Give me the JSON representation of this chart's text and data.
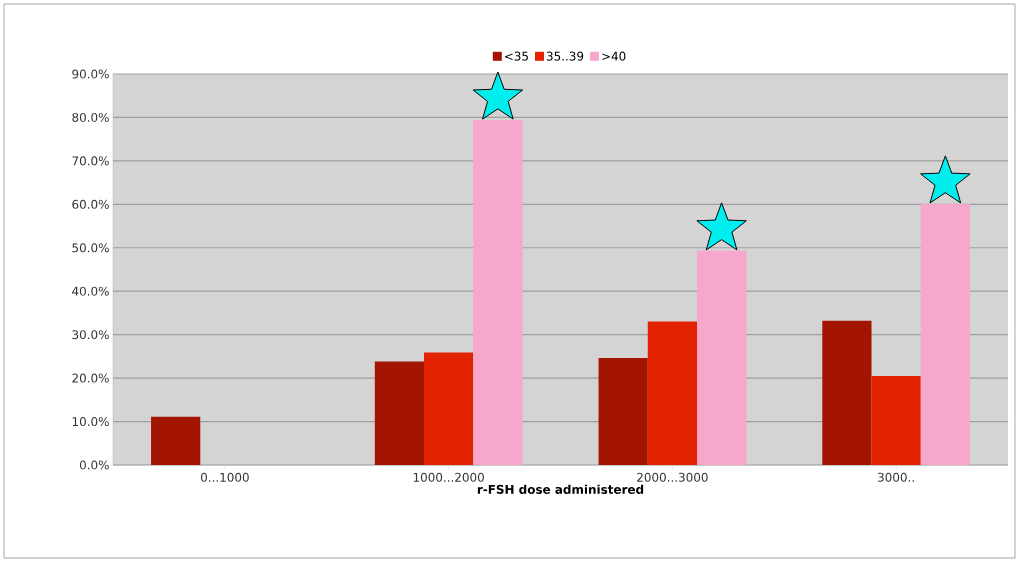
{
  "chart_data": {
    "type": "bar",
    "xlabel": "r-FSH dose administered",
    "categories": [
      "0...1000",
      "1000...2000",
      "2000...3000",
      "3000.."
    ],
    "series": [
      {
        "name": "<35",
        "color": "#a31500",
        "values": [
          11.1,
          23.8,
          24.6,
          33.2
        ]
      },
      {
        "name": "35..39",
        "color": "#e32200",
        "values": [
          null,
          25.9,
          33.0,
          20.5
        ]
      },
      {
        "name": ">40",
        "color": "#f7a6cc",
        "values": [
          null,
          79.4,
          49.3,
          60.1
        ]
      }
    ],
    "ylim": [
      0,
      90
    ],
    "yticks": [
      {
        "value": 0,
        "label": "0.0%"
      },
      {
        "value": 10,
        "label": "10.0%"
      },
      {
        "value": 20,
        "label": "20.0%"
      },
      {
        "value": 30,
        "label": "30.0%"
      },
      {
        "value": 40,
        "label": "40.0%"
      },
      {
        "value": 50,
        "label": "50.0%"
      },
      {
        "value": 60,
        "label": "60.0%"
      },
      {
        "value": 70,
        "label": "70.0%"
      },
      {
        "value": 80,
        "label": "80.0%"
      },
      {
        "value": 90,
        "label": "90.0%"
      }
    ],
    "grid": "y",
    "legend": "top"
  }
}
